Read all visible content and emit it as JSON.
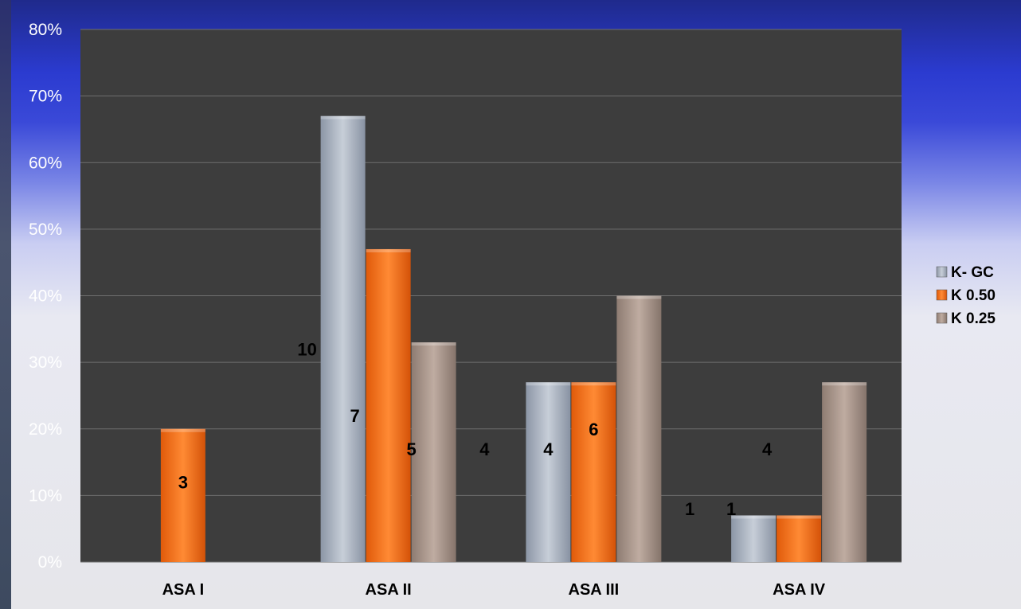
{
  "chart_data": {
    "type": "bar",
    "title": "",
    "xlabel": "",
    "ylabel": "",
    "ylim": [
      0,
      0.8
    ],
    "yticks": [
      "0%",
      "10%",
      "20%",
      "30%",
      "40%",
      "50%",
      "60%",
      "70%",
      "80%"
    ],
    "grid": true,
    "legend_position": "right",
    "categories": [
      "ASA I",
      "ASA II",
      "ASA III",
      "ASA IV"
    ],
    "series": [
      {
        "name": "K- GC",
        "color": "#a9b3c1",
        "values": [
          0,
          0.67,
          0.27,
          0.07
        ]
      },
      {
        "name": "K 0.50",
        "color": "#f26c13",
        "values": [
          0.2,
          0.47,
          0.27,
          0.07
        ]
      },
      {
        "name": "K 0.25",
        "color": "#a9958a",
        "values": [
          0,
          0.33,
          0.4,
          0.27
        ]
      }
    ],
    "data_labels": [
      {
        "text": "3",
        "category": "ASA I",
        "y": 0.12
      },
      {
        "text": "10",
        "category": "ASA II",
        "y": 0.32
      },
      {
        "text": "7",
        "category": "ASA II",
        "y": 0.22
      },
      {
        "text": "5",
        "category": "ASA II",
        "y": 0.17
      },
      {
        "text": "4",
        "category": "ASA III",
        "y": 0.17
      },
      {
        "text": "4",
        "category": "ASA III",
        "y": 0.17
      },
      {
        "text": "6",
        "category": "ASA III",
        "y": 0.2
      },
      {
        "text": "1",
        "category": "ASA IV",
        "y": 0.08
      },
      {
        "text": "1",
        "category": "ASA IV",
        "y": 0.08
      },
      {
        "text": "4",
        "category": "ASA IV",
        "y": 0.17
      }
    ]
  }
}
